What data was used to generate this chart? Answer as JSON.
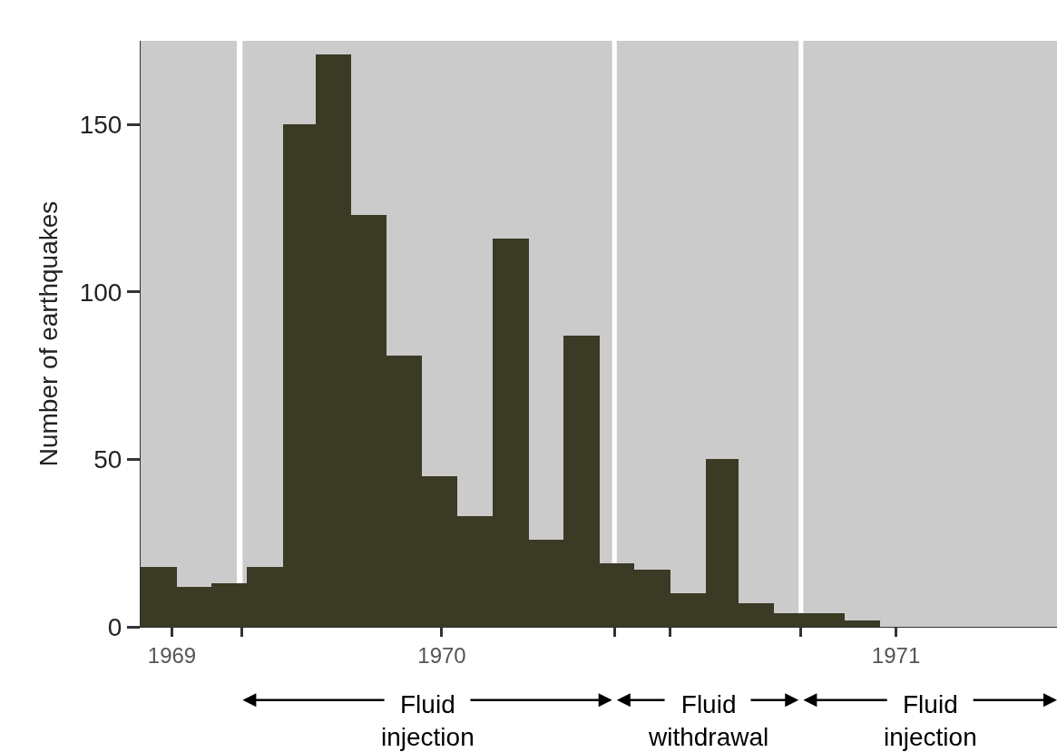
{
  "chart_data": {
    "type": "histogram",
    "ylabel": "Number of earthquakes",
    "bins": [
      "1969-10",
      "1969-11",
      "1969-12",
      "1970-01",
      "1970-02",
      "1970-03",
      "1970-04",
      "1970-05",
      "1970-06",
      "1970-07",
      "1970-08",
      "1970-09",
      "1970-10",
      "1970-11",
      "1970-12",
      "1971-01",
      "1971-02",
      "1971-03",
      "1971-04",
      "1971-05",
      "1971-06",
      "1971-07"
    ],
    "values": [
      18,
      12,
      13,
      18,
      150,
      171,
      123,
      81,
      45,
      33,
      116,
      26,
      87,
      19,
      17,
      10,
      50,
      7,
      4,
      4,
      2
    ],
    "color": "#3b3a24",
    "xlim": [
      "1969-10",
      "1971-12"
    ],
    "ylim": [
      0,
      175
    ],
    "xticks": [
      {
        "value": "1969-10-28",
        "label": "1969"
      },
      {
        "value": "1969-12-27",
        "label": null
      },
      {
        "value": "1970-06-18",
        "label": "1970"
      },
      {
        "value": "1970-11-14",
        "label": null
      },
      {
        "value": "1971-01",
        "label": null
      },
      {
        "value": "1971-04-24",
        "label": null
      },
      {
        "value": "1971-07-15",
        "label": "1971"
      }
    ],
    "yticks": [
      0,
      50,
      100,
      150
    ],
    "bands": [
      {
        "axis": "x",
        "from": "1969-10",
        "to": "1969-12-23",
        "color": "#cbcbcb"
      },
      {
        "axis": "x",
        "from": "1969-12-28",
        "to": "1970-11-12",
        "color": "#cbcbcb",
        "label": "Fluid\ninjection"
      },
      {
        "axis": "x",
        "from": "1970-11-16",
        "to": "1971-04-22",
        "color": "#cbcbcb",
        "label": "Fluid\nwithdrawal"
      },
      {
        "axis": "x",
        "from": "1971-04-26",
        "to": "1971-12",
        "color": "#cbcbcb",
        "label": "Fluid\ninjection"
      }
    ],
    "grid": false
  }
}
